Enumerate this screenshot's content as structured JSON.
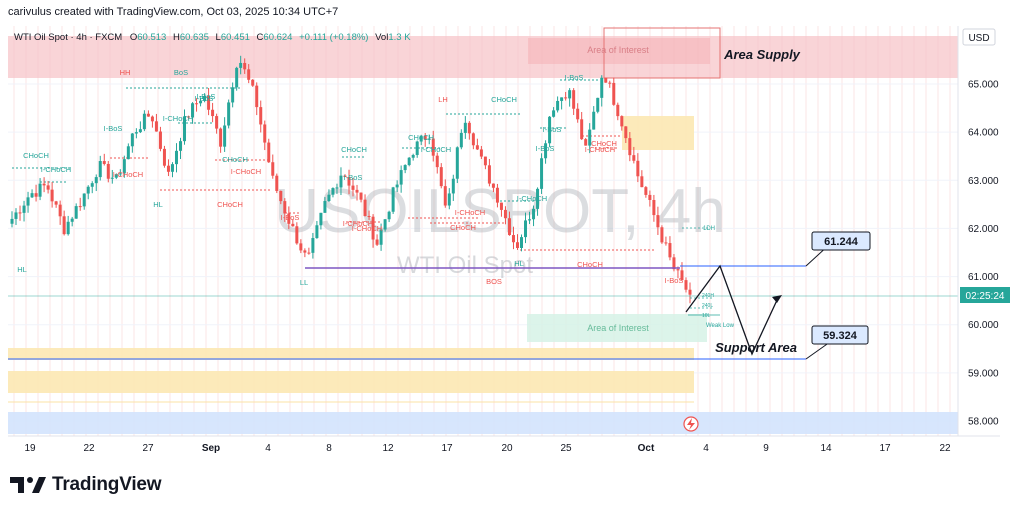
{
  "header": {
    "credit": "carivulus created with TradingView.com, Oct 03, 2025 10:34 UTC+7"
  },
  "legend": {
    "symbol": "WTI Oil Spot · 4h · FXCM",
    "open_label": "O",
    "open": "60.513",
    "high_label": "H",
    "high": "60.635",
    "low_label": "L",
    "low": "60.451",
    "close_label": "C",
    "close": "60.624",
    "change": "+0.111 (+0.18%)",
    "vol_label": "Vol",
    "vol": "1.3 K"
  },
  "watermark": {
    "big": "USOILSPOT, 4h",
    "small": "WTI Oil Spot"
  },
  "axis": {
    "currency": "USD",
    "countdown": "02:25:24"
  },
  "logo": {
    "text": "TradingView"
  },
  "colors": {
    "up": "#26a69a",
    "down": "#ef5350",
    "supply": "#f7c6ca",
    "demand": "#d6f2e6",
    "sand": "#fce8b2",
    "blue_zone": "#d3e3fd",
    "flat": "#5b8dd9",
    "callout": "#dbe9ff"
  },
  "annotations": {
    "area_supply": "Area Supply",
    "support_area": "Support Area",
    "aoi_top": "Area of Interest",
    "aoi_bottom": "Area of Interest",
    "weak_low": "Weak Low",
    "label_1dh": "1DH",
    "label_240h": "240H",
    "label_240l": "240L",
    "label_10l": "10L"
  },
  "chart_data": {
    "type": "candlestick",
    "title": "WTI Oil Spot · 4h · FXCM",
    "ylabel": "USD",
    "ylim": [
      57.7,
      66.2
    ],
    "y_ticks": [
      58.0,
      59.0,
      60.0,
      61.0,
      62.0,
      63.0,
      64.0,
      65.0
    ],
    "y_tick_labels": [
      "58.000",
      "59.000",
      "60.000",
      "61.000",
      "62.000",
      "63.000",
      "64.000",
      "65.000"
    ],
    "x_tick_labels": [
      "19",
      "22",
      "27",
      "Sep",
      "4",
      "8",
      "12",
      "17",
      "20",
      "25",
      "Oct",
      "4",
      "9",
      "14",
      "17",
      "22"
    ],
    "ohlc_anchor_closes": [
      62.2,
      62.7,
      62.9,
      62.0,
      62.6,
      63.3,
      63.0,
      64.0,
      64.4,
      63.1,
      64.3,
      64.8,
      63.8,
      65.6,
      64.7,
      63.0,
      62.1,
      61.3,
      62.5,
      63.2,
      62.6,
      61.7,
      62.8,
      63.6,
      64.0,
      62.3,
      64.4,
      63.4,
      62.6,
      61.6,
      62.5,
      64.5,
      64.9,
      63.6,
      65.3,
      64.3,
      63.1,
      62.2,
      61.2,
      60.6
    ],
    "current_price": 60.624,
    "callouts": [
      {
        "value": "61.244"
      },
      {
        "value": "59.324"
      }
    ],
    "structure_labels": [
      {
        "text": "HH"
      },
      {
        "text": "BoS"
      },
      {
        "text": "I-BoS"
      },
      {
        "text": "I-CHoCH"
      },
      {
        "text": "CHoCH"
      },
      {
        "text": "I-CHoCH"
      },
      {
        "text": "HL"
      },
      {
        "text": "I-BoS"
      },
      {
        "text": "CHoCH"
      },
      {
        "text": "CHoCH"
      },
      {
        "text": "I-CHoCH"
      },
      {
        "text": "HL"
      },
      {
        "text": "I-BoS"
      },
      {
        "text": "I-BoS"
      },
      {
        "text": "I-CHoCH"
      },
      {
        "text": "I-CHoCH"
      },
      {
        "text": "LL"
      },
      {
        "text": "LH"
      },
      {
        "text": "CHoCH"
      },
      {
        "text": "CHoCH"
      },
      {
        "text": "CHoCH"
      },
      {
        "text": "I-CHoCH"
      },
      {
        "text": "I-CHoCH"
      },
      {
        "text": "CHoCH"
      },
      {
        "text": "I-CHoCH"
      },
      {
        "text": "I-BoS"
      },
      {
        "text": "HL"
      },
      {
        "text": "BOS"
      },
      {
        "text": "CHoCH"
      },
      {
        "text": "I-BoS"
      },
      {
        "text": "I-BoS"
      },
      {
        "text": "I-BoS"
      },
      {
        "text": "I-CHoCH"
      },
      {
        "text": "CHoCH"
      },
      {
        "text": "I-BoS"
      },
      {
        "text": "I-CHoCH"
      }
    ]
  }
}
